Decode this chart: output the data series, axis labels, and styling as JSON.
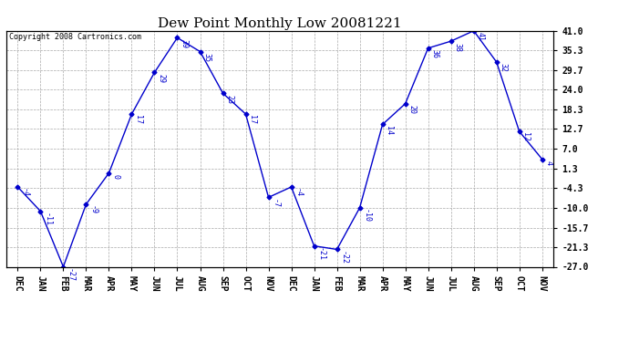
{
  "title": "Dew Point Monthly Low 20081221",
  "copyright": "Copyright 2008 Cartronics.com",
  "x_labels": [
    "DEC",
    "JAN",
    "FEB",
    "MAR",
    "APR",
    "MAY",
    "JUN",
    "JUL",
    "AUG",
    "SEP",
    "OCT",
    "NOV",
    "DEC",
    "JAN",
    "FEB",
    "MAR",
    "APR",
    "MAY",
    "JUN",
    "JUL",
    "AUG",
    "SEP",
    "OCT",
    "NOV"
  ],
  "y_values": [
    -4,
    -11,
    -27,
    -9,
    0,
    17,
    29,
    39,
    35,
    23,
    17,
    -7,
    -4,
    -21,
    -22,
    -10,
    14,
    20,
    36,
    38,
    41,
    32,
    12,
    4
  ],
  "y_ticks": [
    41.0,
    35.3,
    29.7,
    24.0,
    18.3,
    12.7,
    7.0,
    1.3,
    -4.3,
    -10.0,
    -15.7,
    -21.3,
    -27.0
  ],
  "line_color": "#0000cc",
  "marker_color": "#0000cc",
  "background_color": "#ffffff",
  "grid_color": "#aaaaaa",
  "title_fontsize": 11,
  "data_label_fontsize": 6,
  "tick_fontsize": 7,
  "copyright_fontsize": 6,
  "ylim_min": -27.0,
  "ylim_max": 41.0
}
